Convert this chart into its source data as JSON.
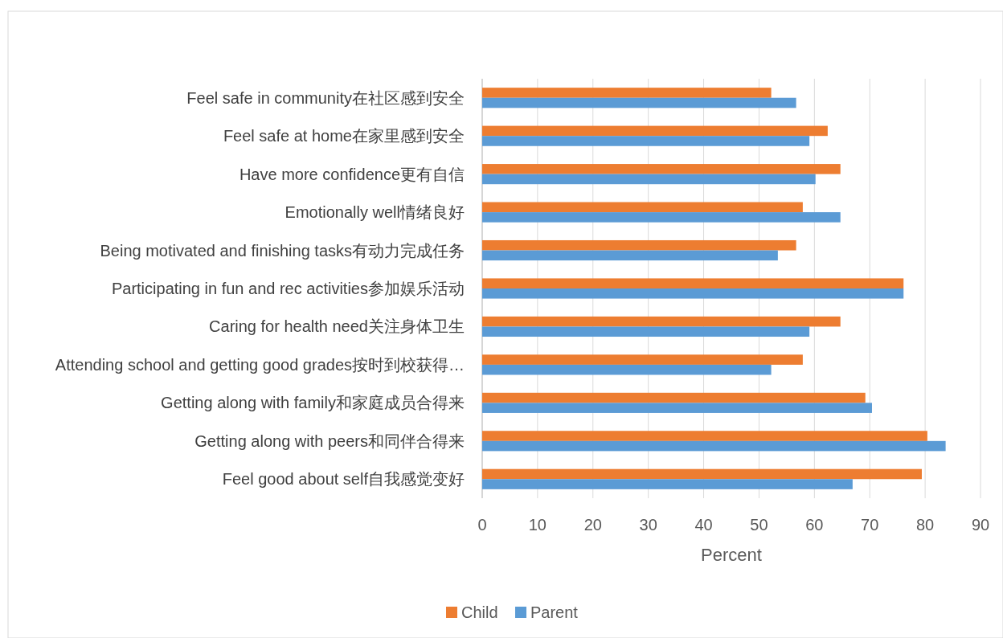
{
  "chart_data": {
    "type": "bar",
    "orientation": "horizontal",
    "xlabel": "Percent",
    "categories": [
      "Feel safe in community在社区感到安全",
      "Feel safe at home在家里感到安全",
      "Have more confidence更有自信",
      "Emotionally well情绪良好",
      "Being motivated and finishing tasks有动力完成任务",
      "Participating in fun and rec activities参加娱乐活动",
      "Caring for health need关注身体卫生",
      "Attending school and getting good grades按时到校获得…",
      "Getting along with family和家庭成员合得来",
      "Getting along with peers和同伴合得来",
      "Feel good about self自我感觉变好"
    ],
    "series": [
      {
        "name": "Child",
        "color": "#ed7d31",
        "values": [
          52.2,
          62.4,
          64.7,
          57.9,
          56.7,
          76.1,
          64.7,
          57.9,
          69.2,
          80.4,
          79.4
        ]
      },
      {
        "name": "Parent",
        "color": "#5b9bd5",
        "values": [
          56.7,
          59.1,
          60.2,
          64.7,
          53.4,
          76.1,
          59.1,
          52.2,
          70.4,
          83.7,
          66.9
        ]
      }
    ],
    "xlim": [
      0,
      90
    ],
    "xticks": [
      0,
      10,
      20,
      30,
      40,
      50,
      60,
      70,
      80,
      90
    ],
    "grid": "x",
    "legend": "bottom"
  }
}
